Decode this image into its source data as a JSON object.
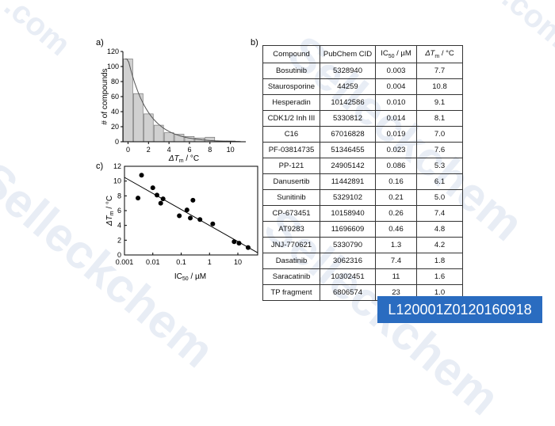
{
  "watermark": {
    "text_com": ".com",
    "text_brand": "Selleckchem"
  },
  "panels": {
    "a": "a)",
    "b": "b)",
    "c": "c)"
  },
  "badge": {
    "text": "L120001Z0120160918",
    "color": "#2a6cc0"
  },
  "chart_data": [
    {
      "type": "bar",
      "panel": "a",
      "ylabel": "# of compounds",
      "xlabel_main": "ΔT",
      "xlabel_sub": "m",
      "xlabel_unit": " / °C",
      "x_ticks": [
        "0",
        "2",
        "4",
        "6",
        "8",
        "10"
      ],
      "y_ticks": [
        "0",
        "20",
        "40",
        "60",
        "80",
        "100",
        "120"
      ],
      "xlim": [
        -0.5,
        11.5
      ],
      "ylim": [
        0,
        120
      ],
      "bin_width": 1,
      "bins": [
        0,
        1,
        2,
        3,
        4,
        5,
        6,
        7,
        8,
        9,
        10
      ],
      "values": [
        110,
        64,
        37,
        22,
        12,
        10,
        7,
        5,
        6,
        1,
        1
      ],
      "fit_curve": {
        "kind": "exponential decay",
        "a": 110,
        "k": 0.52
      },
      "bar_color": "#d0d0d0",
      "bar_edge": "#777777"
    },
    {
      "type": "scatter",
      "panel": "c",
      "ylabel_main": "ΔT",
      "ylabel_sub": "m",
      "ylabel_unit": " / °C",
      "xlabel_main": "IC",
      "xlabel_sub": "50",
      "xlabel_unit": " / µM",
      "x_scale": "log",
      "x_ticks": [
        0.001,
        0.01,
        0.1,
        1,
        10
      ],
      "x_tick_labels": [
        "0.001",
        "0.01",
        "0.1",
        "1",
        "10"
      ],
      "y_ticks": [
        "0",
        "2",
        "4",
        "6",
        "8",
        "10",
        "12"
      ],
      "xlim": [
        0.001,
        50
      ],
      "ylim": [
        0,
        12
      ],
      "points": [
        [
          0.003,
          7.7
        ],
        [
          0.004,
          10.8
        ],
        [
          0.01,
          9.1
        ],
        [
          0.014,
          8.1
        ],
        [
          0.019,
          7.0
        ],
        [
          0.023,
          7.6
        ],
        [
          0.086,
          5.3
        ],
        [
          0.16,
          6.1
        ],
        [
          0.21,
          5.0
        ],
        [
          0.26,
          7.4
        ],
        [
          0.46,
          4.8
        ],
        [
          1.3,
          4.2
        ],
        [
          7.4,
          1.8
        ],
        [
          11,
          1.6
        ],
        [
          23,
          1.0
        ]
      ],
      "fit_line": {
        "x": [
          0.001,
          50
        ],
        "y": [
          10.5,
          0.3
        ]
      }
    },
    {
      "type": "table",
      "panel": "b",
      "headers": [
        {
          "text": "Compound"
        },
        {
          "text": "PubChem CID"
        },
        {
          "text": "IC",
          "sub": "50",
          "tail": " / µM"
        },
        {
          "text": "ΔT",
          "sub": "m",
          "tail": " / °C"
        }
      ],
      "rows": [
        [
          "Bosutinib",
          "5328940",
          "0.003",
          "7.7"
        ],
        [
          "Staurosporine",
          "44259",
          "0.004",
          "10.8"
        ],
        [
          "Hesperadin",
          "10142586",
          "0.010",
          "9.1"
        ],
        [
          "CDK1/2 Inh III",
          "5330812",
          "0.014",
          "8.1"
        ],
        [
          "C16",
          "67016828",
          "0.019",
          "7.0"
        ],
        [
          "PF-03814735",
          "51346455",
          "0.023",
          "7.6"
        ],
        [
          "PP-121",
          "24905142",
          "0.086",
          "5.3"
        ],
        [
          "Danusertib",
          "11442891",
          "0.16",
          "6.1"
        ],
        [
          "Sunitinib",
          "5329102",
          "0.21",
          "5.0"
        ],
        [
          "CP-673451",
          "10158940",
          "0.26",
          "7.4"
        ],
        [
          "AT9283",
          "11696609",
          "0.46",
          "4.8"
        ],
        [
          "JNJ-770621",
          "5330790",
          "1.3",
          "4.2"
        ],
        [
          "Dasatinib",
          "3062316",
          "7.4",
          "1.8"
        ],
        [
          "Saracatinib",
          "10302451",
          "11",
          "1.6"
        ],
        [
          "TP fragment",
          "6806574",
          "23",
          "1.0"
        ]
      ]
    }
  ]
}
